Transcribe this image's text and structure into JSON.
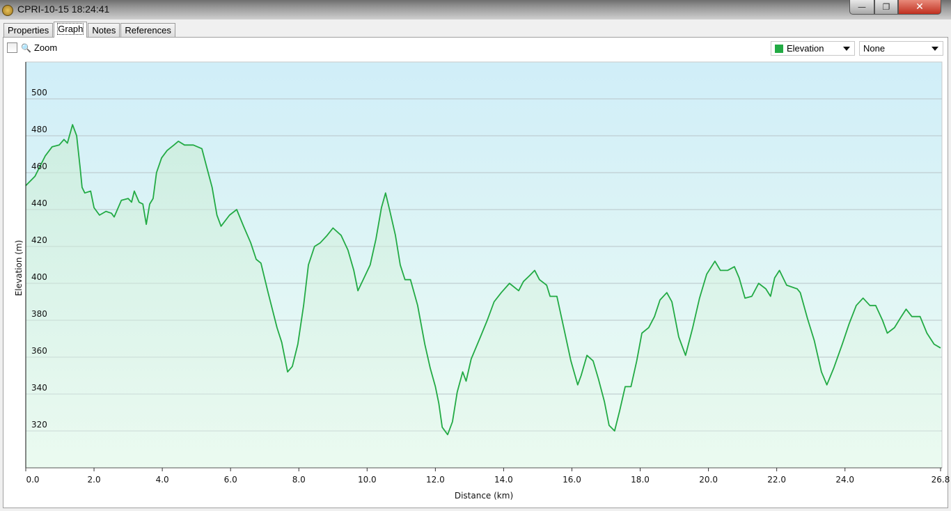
{
  "window": {
    "title": "CPRI-10-15 18:24:41",
    "minimize": "—",
    "restore": "❐",
    "close": "✕"
  },
  "tabs": [
    {
      "label": "Properties"
    },
    {
      "label": "Graph",
      "active": true
    },
    {
      "label": "Notes"
    },
    {
      "label": "References"
    }
  ],
  "toolbar": {
    "zoom_label": "Zoom",
    "zoom_checked": false,
    "zoom_icon": "magnifier-icon",
    "primary_select": "Elevation",
    "primary_color": "#22aa44",
    "secondary_select": "None"
  },
  "chart_data": {
    "type": "area",
    "xlabel": "Distance (km)",
    "ylabel": "Elevation (m)",
    "xlim": [
      0,
      26.8
    ],
    "ylim": [
      300,
      520
    ],
    "xticks": [
      "0.0",
      "2.0",
      "4.0",
      "6.0",
      "8.0",
      "10.0",
      "12.0",
      "14.0",
      "16.0",
      "18.0",
      "20.0",
      "22.0",
      "24.0",
      "26.8"
    ],
    "yticks": [
      "320",
      "340",
      "360",
      "380",
      "400",
      "420",
      "440",
      "460",
      "480",
      "500"
    ],
    "grid": "horizontal",
    "line_color": "#22aa44",
    "series": [
      {
        "name": "Elevation",
        "points": [
          [
            0,
            453
          ],
          [
            0.27,
            458
          ],
          [
            0.57,
            469
          ],
          [
            0.77,
            474
          ],
          [
            0.98,
            475
          ],
          [
            1.12,
            478
          ],
          [
            1.22,
            476
          ],
          [
            1.37,
            486
          ],
          [
            1.49,
            480
          ],
          [
            1.59,
            463
          ],
          [
            1.65,
            452
          ],
          [
            1.73,
            449
          ],
          [
            1.9,
            450
          ],
          [
            2.0,
            441
          ],
          [
            2.16,
            437
          ],
          [
            2.35,
            439
          ],
          [
            2.51,
            438
          ],
          [
            2.59,
            436
          ],
          [
            2.8,
            445
          ],
          [
            3.0,
            446
          ],
          [
            3.1,
            444
          ],
          [
            3.18,
            450
          ],
          [
            3.32,
            444
          ],
          [
            3.43,
            443
          ],
          [
            3.53,
            432
          ],
          [
            3.63,
            443
          ],
          [
            3.73,
            446
          ],
          [
            3.83,
            460
          ],
          [
            3.98,
            468
          ],
          [
            4.14,
            472
          ],
          [
            4.34,
            475
          ],
          [
            4.47,
            477
          ],
          [
            4.65,
            475
          ],
          [
            4.91,
            475
          ],
          [
            5.16,
            473
          ],
          [
            5.3,
            463
          ],
          [
            5.46,
            452
          ],
          [
            5.6,
            437
          ],
          [
            5.72,
            431
          ],
          [
            5.97,
            437
          ],
          [
            6.18,
            440
          ],
          [
            6.38,
            431
          ],
          [
            6.59,
            422
          ],
          [
            6.75,
            413
          ],
          [
            6.89,
            411
          ],
          [
            7.1,
            395
          ],
          [
            7.36,
            376
          ],
          [
            7.5,
            368
          ],
          [
            7.67,
            352
          ],
          [
            7.81,
            355
          ],
          [
            7.97,
            367
          ],
          [
            8.14,
            388
          ],
          [
            8.28,
            410
          ],
          [
            8.46,
            420
          ],
          [
            8.63,
            422
          ],
          [
            8.83,
            426
          ],
          [
            9.0,
            430
          ],
          [
            9.24,
            426
          ],
          [
            9.44,
            418
          ],
          [
            9.61,
            407
          ],
          [
            9.73,
            396
          ],
          [
            9.91,
            403
          ],
          [
            10.09,
            410
          ],
          [
            10.26,
            424
          ],
          [
            10.42,
            441
          ],
          [
            10.54,
            449
          ],
          [
            10.67,
            439
          ],
          [
            10.83,
            426
          ],
          [
            10.97,
            410
          ],
          [
            11.11,
            402
          ],
          [
            11.27,
            402
          ],
          [
            11.48,
            388
          ],
          [
            11.69,
            367
          ],
          [
            11.85,
            354
          ],
          [
            12.0,
            344
          ],
          [
            12.1,
            335
          ],
          [
            12.2,
            322
          ],
          [
            12.36,
            318
          ],
          [
            12.5,
            325
          ],
          [
            12.64,
            341
          ],
          [
            12.8,
            352
          ],
          [
            12.9,
            347
          ],
          [
            13.05,
            359
          ],
          [
            13.32,
            371
          ],
          [
            13.52,
            380
          ],
          [
            13.72,
            390
          ],
          [
            13.93,
            395
          ],
          [
            14.17,
            400
          ],
          [
            14.44,
            396
          ],
          [
            14.58,
            401
          ],
          [
            14.75,
            404
          ],
          [
            14.91,
            407
          ],
          [
            15.05,
            402
          ],
          [
            15.26,
            399
          ],
          [
            15.36,
            393
          ],
          [
            15.56,
            393
          ],
          [
            15.76,
            376
          ],
          [
            15.97,
            358
          ],
          [
            16.17,
            345
          ],
          [
            16.27,
            350
          ],
          [
            16.44,
            361
          ],
          [
            16.62,
            358
          ],
          [
            16.78,
            348
          ],
          [
            16.95,
            336
          ],
          [
            17.09,
            323
          ],
          [
            17.25,
            320
          ],
          [
            17.4,
            331
          ],
          [
            17.56,
            344
          ],
          [
            17.73,
            344
          ],
          [
            17.9,
            358
          ],
          [
            18.05,
            373
          ],
          [
            18.25,
            376
          ],
          [
            18.42,
            382
          ],
          [
            18.58,
            391
          ],
          [
            18.78,
            395
          ],
          [
            18.93,
            390
          ],
          [
            19.13,
            371
          ],
          [
            19.33,
            361
          ],
          [
            19.54,
            376
          ],
          [
            19.74,
            392
          ],
          [
            19.95,
            405
          ],
          [
            20.19,
            412
          ],
          [
            20.35,
            407
          ],
          [
            20.56,
            407
          ],
          [
            20.76,
            409
          ],
          [
            20.9,
            403
          ],
          [
            21.07,
            392
          ],
          [
            21.27,
            393
          ],
          [
            21.47,
            400
          ],
          [
            21.68,
            397
          ],
          [
            21.82,
            393
          ],
          [
            21.94,
            403
          ],
          [
            22.08,
            407
          ],
          [
            22.29,
            399
          ],
          [
            22.6,
            397
          ],
          [
            22.69,
            395
          ],
          [
            22.9,
            381
          ],
          [
            23.1,
            369
          ],
          [
            23.31,
            352
          ],
          [
            23.47,
            345
          ],
          [
            23.67,
            354
          ],
          [
            23.92,
            367
          ],
          [
            24.12,
            378
          ],
          [
            24.33,
            388
          ],
          [
            24.53,
            392
          ],
          [
            24.73,
            388
          ],
          [
            24.9,
            388
          ],
          [
            25.1,
            380
          ],
          [
            25.24,
            373
          ],
          [
            25.45,
            376
          ],
          [
            25.65,
            382
          ],
          [
            25.79,
            386
          ],
          [
            25.96,
            382
          ],
          [
            26.2,
            382
          ],
          [
            26.4,
            373
          ],
          [
            26.61,
            367
          ],
          [
            26.8,
            365
          ]
        ]
      }
    ]
  }
}
